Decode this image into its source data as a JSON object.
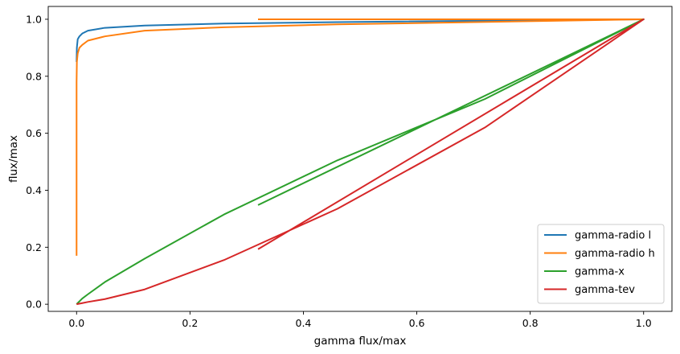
{
  "chart_data": {
    "type": "line",
    "xlabel": "gamma flux/max",
    "ylabel": "flux/max",
    "xlim": [
      -0.05,
      1.05
    ],
    "ylim": [
      -0.025,
      1.045
    ],
    "xticks": [
      0.0,
      0.2,
      0.4,
      0.6,
      0.8,
      1.0
    ],
    "xtick_labels": [
      "0.0",
      "0.2",
      "0.4",
      "0.6",
      "0.8",
      "1.0"
    ],
    "yticks": [
      0.0,
      0.2,
      0.4,
      0.6,
      0.8,
      1.0
    ],
    "ytick_labels": [
      "0.0",
      "0.2",
      "0.4",
      "0.6",
      "0.8",
      "1.0"
    ],
    "grid": false,
    "legend_position": "lower-right",
    "series": [
      {
        "name": "gamma-radio l",
        "color": "#1f77b4",
        "x": [
          0.0,
          0.0005,
          0.002,
          0.005,
          0.01,
          0.02,
          0.05,
          0.12,
          0.26,
          0.46,
          1.0,
          0.32
        ],
        "y": [
          0.85,
          0.9,
          0.93,
          0.94,
          0.95,
          0.96,
          0.97,
          0.978,
          0.985,
          0.99,
          1.0,
          1.0
        ]
      },
      {
        "name": "gamma-radio h",
        "color": "#ff7f0e",
        "x": [
          0.0,
          0.0,
          0.0,
          0.0005,
          0.002,
          0.005,
          0.01,
          0.02,
          0.05,
          0.12,
          0.26,
          0.46,
          1.0,
          0.32
        ],
        "y": [
          0.17,
          0.5,
          0.78,
          0.85,
          0.88,
          0.9,
          0.91,
          0.925,
          0.94,
          0.96,
          0.972,
          0.982,
          1.0,
          1.0
        ]
      },
      {
        "name": "gamma-x",
        "color": "#2ca02c",
        "x": [
          0.0,
          0.01,
          0.02,
          0.05,
          0.12,
          0.26,
          0.46,
          0.72,
          1.0,
          0.32
        ],
        "y": [
          0.0,
          0.02,
          0.035,
          0.078,
          0.16,
          0.315,
          0.505,
          0.72,
          1.0,
          0.348
        ]
      },
      {
        "name": "gamma-tev",
        "color": "#d62728",
        "x": [
          0.0,
          0.01,
          0.02,
          0.05,
          0.12,
          0.26,
          0.46,
          0.72,
          1.0,
          0.32
        ],
        "y": [
          0.0,
          0.004,
          0.008,
          0.018,
          0.052,
          0.155,
          0.335,
          0.62,
          1.0,
          0.193
        ]
      }
    ]
  }
}
